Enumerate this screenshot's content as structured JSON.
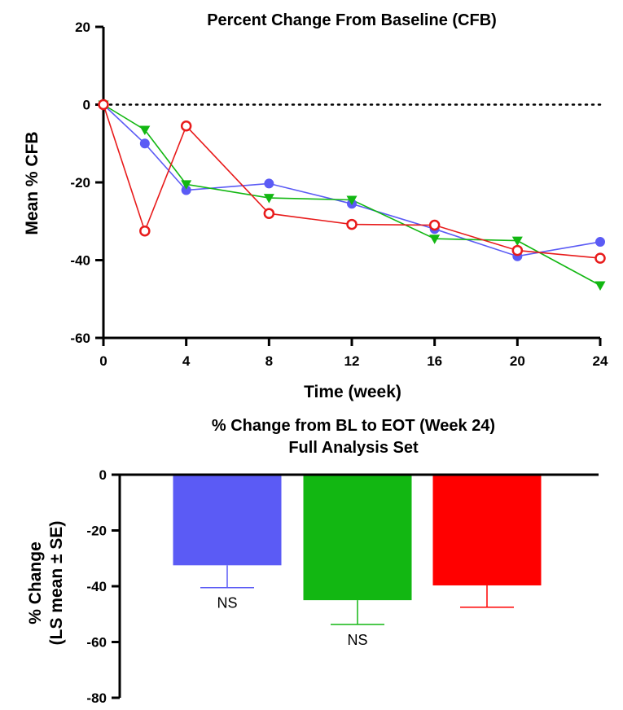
{
  "chart_data": [
    {
      "type": "line",
      "title": "Percent Change From Baseline (CFB)",
      "xlabel": "Time (week)",
      "ylabel": "Mean % CFB",
      "xlim": [
        0,
        24
      ],
      "ylim": [
        -60,
        20
      ],
      "xticks": [
        0,
        4,
        8,
        12,
        16,
        20,
        24
      ],
      "yticks": [
        20,
        0,
        -20,
        -40,
        -60
      ],
      "reference_line": 0,
      "grid": false,
      "series": [
        {
          "color": "#5b5bf5",
          "marker": "filled-circle",
          "x": [
            0,
            2,
            4,
            8,
            12,
            16,
            20,
            24
          ],
          "y": [
            0,
            -10,
            -22,
            -20.3,
            -25.5,
            -32,
            -39,
            -35.3
          ]
        },
        {
          "color": "#12b712",
          "marker": "filled-triangle-down",
          "x": [
            0,
            2,
            4,
            8,
            12,
            16,
            20,
            24
          ],
          "y": [
            0,
            -6.5,
            -20.5,
            -24,
            -24.5,
            -34.5,
            -35,
            -46.5
          ]
        },
        {
          "color": "#e81b1b",
          "marker": "open-circle",
          "x": [
            0,
            2,
            4,
            8,
            12,
            16,
            20,
            24
          ],
          "y": [
            0,
            -32.5,
            -5.5,
            -28,
            -30.8,
            -31,
            -37.5,
            -39.5
          ]
        }
      ]
    },
    {
      "type": "bar",
      "title": [
        "% Change from BL to EOT (Week 24)",
        "Full Analysis Set"
      ],
      "ylabel": [
        "% Change",
        "(LS mean ± SE)"
      ],
      "ylim": [
        -80,
        0
      ],
      "yticks": [
        0,
        -20,
        -40,
        -60,
        -80
      ],
      "grid": false,
      "bars": [
        {
          "value": -32.5,
          "se": 8,
          "color": "#5b5bf5",
          "annotation": "NS"
        },
        {
          "value": -45,
          "se": 8.7,
          "color": "#12b712",
          "annotation": "NS"
        },
        {
          "value": -39.7,
          "se": 7.8,
          "color": "#ff0000",
          "annotation": ""
        }
      ]
    }
  ]
}
